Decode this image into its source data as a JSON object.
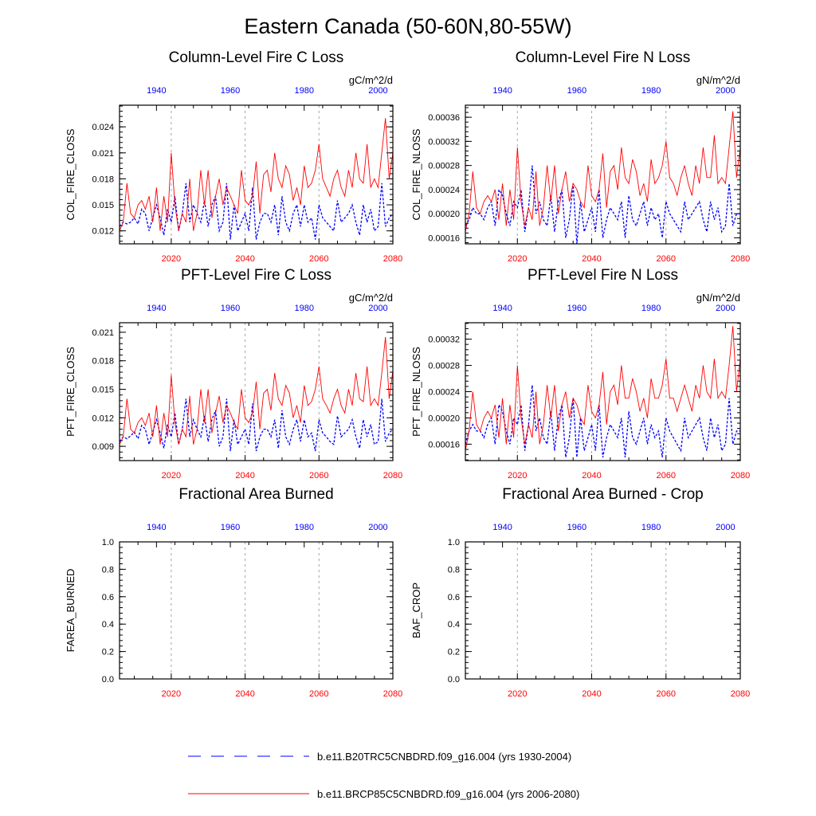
{
  "title": "Eastern Canada (50-60N,80-55W)",
  "colors": {
    "hist": "#0000ff",
    "future": "#ff0000",
    "axis": "#000000",
    "grid": "#a6a6a6"
  },
  "chart_data": [
    {
      "type": "line",
      "title": "Column-Level Fire C Loss",
      "ylabel": "COL_FIRE_CLOSS",
      "units": "gC/m^2/d",
      "ylim": [
        0.0105,
        0.0265
      ],
      "yticks": [
        "0.012",
        "0.015",
        "0.018",
        "0.021",
        "0.024"
      ],
      "ytick_values": [
        0.012,
        0.015,
        0.018,
        0.021,
        0.024
      ],
      "bottom_axis": {
        "label_years": [
          "2020",
          "2040",
          "2060",
          "2080"
        ],
        "range": [
          2006,
          2080
        ]
      },
      "top_axis": {
        "label_years": [
          "1940",
          "1960",
          "1980",
          "2000"
        ],
        "range": [
          1930,
          2004
        ]
      },
      "series": [
        {
          "name": "b.e11.B20TRC5CNBDRD.f09_g16.004 (yrs 1930-2004)",
          "style": "dashed",
          "x_start": 1930,
          "values": [
            0.0125,
            0.013,
            0.0128,
            0.013,
            0.0135,
            0.0128,
            0.0145,
            0.014,
            0.012,
            0.0135,
            0.015,
            0.0135,
            0.0115,
            0.0145,
            0.013,
            0.016,
            0.012,
            0.014,
            0.0175,
            0.013,
            0.015,
            0.014,
            0.013,
            0.0155,
            0.0125,
            0.015,
            0.016,
            0.012,
            0.013,
            0.0175,
            0.011,
            0.015,
            0.012,
            0.013,
            0.014,
            0.012,
            0.017,
            0.011,
            0.013,
            0.014,
            0.014,
            0.013,
            0.015,
            0.0115,
            0.016,
            0.013,
            0.012,
            0.014,
            0.015,
            0.0125,
            0.015,
            0.013,
            0.0135,
            0.011,
            0.015,
            0.0135,
            0.013,
            0.0125,
            0.012,
            0.0155,
            0.013,
            0.0135,
            0.014,
            0.015,
            0.013,
            0.0115,
            0.015,
            0.013,
            0.0145,
            0.012,
            0.0125,
            0.0175,
            0.0125,
            0.0135,
            0.014
          ]
        },
        {
          "name": "b.e11.BRCP85C5CNBDRD.f09_g16.004 (yrs 2006-2080)",
          "style": "solid",
          "x_start": 2006,
          "values": [
            0.012,
            0.013,
            0.0175,
            0.014,
            0.0135,
            0.015,
            0.0155,
            0.0145,
            0.016,
            0.013,
            0.017,
            0.012,
            0.016,
            0.013,
            0.021,
            0.015,
            0.012,
            0.014,
            0.013,
            0.018,
            0.012,
            0.014,
            0.019,
            0.015,
            0.019,
            0.0135,
            0.016,
            0.018,
            0.015,
            0.017,
            0.016,
            0.015,
            0.014,
            0.019,
            0.0155,
            0.015,
            0.016,
            0.02,
            0.014,
            0.0185,
            0.019,
            0.0165,
            0.021,
            0.018,
            0.017,
            0.0195,
            0.0185,
            0.0155,
            0.017,
            0.015,
            0.0195,
            0.017,
            0.0175,
            0.019,
            0.022,
            0.018,
            0.017,
            0.016,
            0.018,
            0.019,
            0.017,
            0.016,
            0.019,
            0.017,
            0.021,
            0.018,
            0.0175,
            0.022,
            0.017,
            0.018,
            0.017,
            0.021,
            0.025,
            0.018,
            0.021
          ]
        }
      ]
    },
    {
      "type": "line",
      "title": "Column-Level Fire N Loss",
      "ylabel": "COL_FIRE_NLOSS",
      "units": "gN/m^2/d",
      "ylim": [
        0.00015,
        0.00038
      ],
      "yticks": [
        "0.00016",
        "0.00020",
        "0.00024",
        "0.00028",
        "0.00032",
        "0.00036"
      ],
      "ytick_values": [
        0.00016,
        0.0002,
        0.00024,
        0.00028,
        0.00032,
        0.00036
      ],
      "bottom_axis": {
        "label_years": [
          "2020",
          "2040",
          "2060",
          "2080"
        ],
        "range": [
          2006,
          2080
        ]
      },
      "top_axis": {
        "label_years": [
          "1940",
          "1960",
          "1980",
          "2000"
        ],
        "range": [
          1930,
          2004
        ]
      },
      "series": [
        {
          "name": "b.e11.B20TRC5CNBDRD.f09_g16.004 (yrs 1930-2004)",
          "style": "dashed",
          "x_start": 1930,
          "values": [
            0.00018,
            0.00019,
            0.00021,
            0.0002,
            0.0002,
            0.00019,
            0.00021,
            0.00022,
            0.00018,
            0.00024,
            0.00023,
            0.0002,
            0.00018,
            0.00022,
            0.00021,
            0.00024,
            0.00017,
            0.00021,
            0.00028,
            0.0002,
            0.00022,
            0.00019,
            0.00018,
            0.00023,
            0.00017,
            0.00022,
            0.00024,
            0.00016,
            0.00019,
            0.00025,
            0.00015,
            0.00022,
            0.00017,
            0.00019,
            0.00021,
            0.00017,
            0.00024,
            0.00016,
            0.00019,
            0.00021,
            0.0002,
            0.00019,
            0.00022,
            0.00016,
            0.00023,
            0.00019,
            0.00018,
            0.0002,
            0.00022,
            0.00018,
            0.00021,
            0.00019,
            0.0002,
            0.00016,
            0.00022,
            0.0002,
            0.00019,
            0.00018,
            0.00017,
            0.00022,
            0.00019,
            0.0002,
            0.00021,
            0.00022,
            0.00019,
            0.00017,
            0.00022,
            0.00019,
            0.00021,
            0.00017,
            0.00018,
            0.00025,
            0.00018,
            0.0002,
            0.0002
          ]
        },
        {
          "name": "b.e11.BRCP85C5CNBDRD.f09_g16.004 (yrs 2006-2080)",
          "style": "solid",
          "x_start": 2006,
          "values": [
            0.00017,
            0.0002,
            0.00027,
            0.00021,
            0.0002,
            0.00022,
            0.00023,
            0.00022,
            0.00024,
            0.00019,
            0.00025,
            0.00018,
            0.00024,
            0.00019,
            0.00031,
            0.00022,
            0.00018,
            0.00021,
            0.00019,
            0.00027,
            0.00018,
            0.00021,
            0.00028,
            0.00022,
            0.00028,
            0.0002,
            0.00024,
            0.00027,
            0.00022,
            0.00025,
            0.00024,
            0.00022,
            0.00021,
            0.00028,
            0.00023,
            0.00022,
            0.00024,
            0.0003,
            0.00021,
            0.00027,
            0.00028,
            0.00024,
            0.00031,
            0.00026,
            0.00025,
            0.00029,
            0.00027,
            0.00023,
            0.00025,
            0.00022,
            0.00029,
            0.00025,
            0.00026,
            0.00028,
            0.00032,
            0.00026,
            0.00025,
            0.00023,
            0.00026,
            0.00028,
            0.00025,
            0.00023,
            0.00028,
            0.00025,
            0.00031,
            0.00026,
            0.00026,
            0.00033,
            0.00025,
            0.00026,
            0.00025,
            0.00031,
            0.00037,
            0.00026,
            0.00031
          ]
        }
      ]
    },
    {
      "type": "line",
      "title": "PFT-Level Fire C Loss",
      "ylabel": "PFT_FIRE_CLOSS",
      "units": "gC/m^2/d",
      "ylim": [
        0.0075,
        0.022
      ],
      "yticks": [
        "0.009",
        "0.012",
        "0.015",
        "0.018",
        "0.021"
      ],
      "ytick_values": [
        0.009,
        0.012,
        0.015,
        0.018,
        0.021
      ],
      "bottom_axis": {
        "label_years": [
          "2020",
          "2040",
          "2060",
          "2080"
        ],
        "range": [
          2006,
          2080
        ]
      },
      "top_axis": {
        "label_years": [
          "1940",
          "1960",
          "1980",
          "2000"
        ],
        "range": [
          1930,
          2004
        ]
      },
      "series": [
        {
          "name": "b.e11.B20TRC5CNBDRD.f09_g16.004 (yrs 1930-2004)",
          "style": "dashed",
          "x_start": 1930,
          "values": [
            0.0095,
            0.01,
            0.0098,
            0.0101,
            0.0105,
            0.0098,
            0.0112,
            0.0108,
            0.0092,
            0.0105,
            0.0118,
            0.0104,
            0.0088,
            0.0113,
            0.01,
            0.0125,
            0.0092,
            0.0108,
            0.014,
            0.01,
            0.0118,
            0.0108,
            0.01,
            0.0122,
            0.0095,
            0.0118,
            0.0128,
            0.009,
            0.01,
            0.014,
            0.0085,
            0.0118,
            0.0092,
            0.01,
            0.0108,
            0.0092,
            0.0135,
            0.0085,
            0.01,
            0.0108,
            0.0108,
            0.01,
            0.0118,
            0.0088,
            0.0128,
            0.01,
            0.0092,
            0.0108,
            0.0118,
            0.0095,
            0.0118,
            0.01,
            0.0104,
            0.0085,
            0.0118,
            0.0104,
            0.01,
            0.0095,
            0.0092,
            0.0122,
            0.01,
            0.0104,
            0.0108,
            0.0118,
            0.01,
            0.0088,
            0.0118,
            0.01,
            0.0113,
            0.0092,
            0.0095,
            0.014,
            0.0095,
            0.0104,
            0.0108
          ]
        },
        {
          "name": "b.e11.BRCP85C5CNBDRD.f09_g16.004 (yrs 2006-2080)",
          "style": "solid",
          "x_start": 2006,
          "values": [
            0.0092,
            0.01,
            0.014,
            0.0108,
            0.0104,
            0.0115,
            0.012,
            0.0112,
            0.0125,
            0.01,
            0.0133,
            0.0092,
            0.0125,
            0.01,
            0.0165,
            0.0115,
            0.0092,
            0.0108,
            0.01,
            0.0143,
            0.0092,
            0.0108,
            0.015,
            0.0115,
            0.015,
            0.0104,
            0.0125,
            0.0143,
            0.0115,
            0.0133,
            0.0125,
            0.0115,
            0.0108,
            0.015,
            0.012,
            0.0115,
            0.0125,
            0.0158,
            0.0108,
            0.0146,
            0.015,
            0.0128,
            0.0167,
            0.014,
            0.0133,
            0.0154,
            0.0146,
            0.012,
            0.0133,
            0.0115,
            0.0154,
            0.0133,
            0.0137,
            0.015,
            0.0174,
            0.014,
            0.0133,
            0.0125,
            0.014,
            0.015,
            0.0133,
            0.0125,
            0.015,
            0.0133,
            0.0167,
            0.014,
            0.0137,
            0.0174,
            0.0133,
            0.014,
            0.0133,
            0.0167,
            0.0205,
            0.014,
            0.017
          ]
        }
      ]
    },
    {
      "type": "line",
      "title": "PFT-Level Fire N Loss",
      "ylabel": "PFT_FIRE_NLOSS",
      "units": "gN/m^2/d",
      "ylim": [
        0.000135,
        0.000345
      ],
      "yticks": [
        "0.00016",
        "0.00020",
        "0.00024",
        "0.00028",
        "0.00032"
      ],
      "ytick_values": [
        0.00016,
        0.0002,
        0.00024,
        0.00028,
        0.00032
      ],
      "bottom_axis": {
        "label_years": [
          "2020",
          "2040",
          "2060",
          "2080"
        ],
        "range": [
          2006,
          2080
        ]
      },
      "top_axis": {
        "label_years": [
          "1940",
          "1960",
          "1980",
          "2000"
        ],
        "range": [
          1930,
          2004
        ]
      },
      "series": [
        {
          "name": "b.e11.B20TRC5CNBDRD.f09_g16.004 (yrs 1930-2004)",
          "style": "dashed",
          "x_start": 1930,
          "values": [
            0.00016,
            0.00018,
            0.00019,
            0.00018,
            0.00018,
            0.00017,
            0.00019,
            0.0002,
            0.00016,
            0.00022,
            0.00021,
            0.00018,
            0.00016,
            0.0002,
            0.00019,
            0.00022,
            0.00015,
            0.00019,
            0.00025,
            0.00018,
            0.0002,
            0.00017,
            0.00016,
            0.00021,
            0.00015,
            0.0002,
            0.00022,
            0.00014,
            0.00017,
            0.00023,
            0.00014,
            0.0002,
            0.00015,
            0.00017,
            0.00019,
            0.00015,
            0.00022,
            0.00014,
            0.00017,
            0.00019,
            0.00018,
            0.00017,
            0.0002,
            0.00014,
            0.00021,
            0.00017,
            0.00016,
            0.00018,
            0.0002,
            0.00016,
            0.00019,
            0.00017,
            0.00018,
            0.00014,
            0.0002,
            0.00018,
            0.00017,
            0.00016,
            0.00015,
            0.0002,
            0.00017,
            0.00018,
            0.00019,
            0.0002,
            0.00017,
            0.00015,
            0.0002,
            0.00017,
            0.00019,
            0.00015,
            0.00016,
            0.00023,
            0.00016,
            0.00018,
            0.00018
          ]
        },
        {
          "name": "b.e11.BRCP85C5CNBDRD.f09_g16.004 (yrs 2006-2080)",
          "style": "solid",
          "x_start": 2006,
          "values": [
            0.00015,
            0.00018,
            0.00024,
            0.00019,
            0.00018,
            0.0002,
            0.00021,
            0.0002,
            0.00022,
            0.00017,
            0.00023,
            0.00016,
            0.00022,
            0.00017,
            0.00028,
            0.0002,
            0.00016,
            0.00019,
            0.00017,
            0.00024,
            0.00016,
            0.00019,
            0.00025,
            0.0002,
            0.00025,
            0.00018,
            0.00022,
            0.00024,
            0.0002,
            0.00023,
            0.00022,
            0.0002,
            0.00019,
            0.00025,
            0.00021,
            0.0002,
            0.00022,
            0.00027,
            0.00019,
            0.00024,
            0.00025,
            0.00022,
            0.00028,
            0.00023,
            0.00023,
            0.00026,
            0.00024,
            0.00021,
            0.00023,
            0.0002,
            0.00026,
            0.00023,
            0.00023,
            0.00025,
            0.00029,
            0.00023,
            0.00023,
            0.00021,
            0.00023,
            0.00025,
            0.00023,
            0.00021,
            0.00025,
            0.00023,
            0.00028,
            0.00024,
            0.00023,
            0.00029,
            0.00023,
            0.00024,
            0.00023,
            0.00028,
            0.00034,
            0.00024,
            0.00029
          ]
        }
      ]
    },
    {
      "type": "line",
      "title": "Fractional Area Burned",
      "ylabel": "FAREA_BURNED",
      "units": "",
      "ylim": [
        0.0,
        1.0
      ],
      "yticks": [
        "0.0",
        "0.2",
        "0.4",
        "0.6",
        "0.8",
        "1.0"
      ],
      "ytick_values": [
        0.0,
        0.2,
        0.4,
        0.6,
        0.8,
        1.0
      ],
      "bottom_axis": {
        "label_years": [
          "2020",
          "2040",
          "2060",
          "2080"
        ],
        "range": [
          2006,
          2080
        ]
      },
      "top_axis": {
        "label_years": [
          "1940",
          "1960",
          "1980",
          "2000"
        ],
        "range": [
          1930,
          2004
        ]
      },
      "series": []
    },
    {
      "type": "line",
      "title": "Fractional Area Burned - Crop",
      "ylabel": "BAF_CROP",
      "units": "",
      "ylim": [
        0.0,
        1.0
      ],
      "yticks": [
        "0.0",
        "0.2",
        "0.4",
        "0.6",
        "0.8",
        "1.0"
      ],
      "ytick_values": [
        0.0,
        0.2,
        0.4,
        0.6,
        0.8,
        1.0
      ],
      "bottom_axis": {
        "label_years": [
          "2020",
          "2040",
          "2060",
          "2080"
        ],
        "range": [
          2006,
          2080
        ]
      },
      "top_axis": {
        "label_years": [
          "1940",
          "1960",
          "1980",
          "2000"
        ],
        "range": [
          1930,
          2004
        ]
      },
      "series": []
    }
  ],
  "legend": [
    {
      "label": "b.e11.B20TRC5CNBDRD.f09_g16.004 (yrs 1930-2004)",
      "style": "dashed"
    },
    {
      "label": "b.e11.BRCP85C5CNBDRD.f09_g16.004 (yrs 2006-2080)",
      "style": "solid"
    }
  ]
}
